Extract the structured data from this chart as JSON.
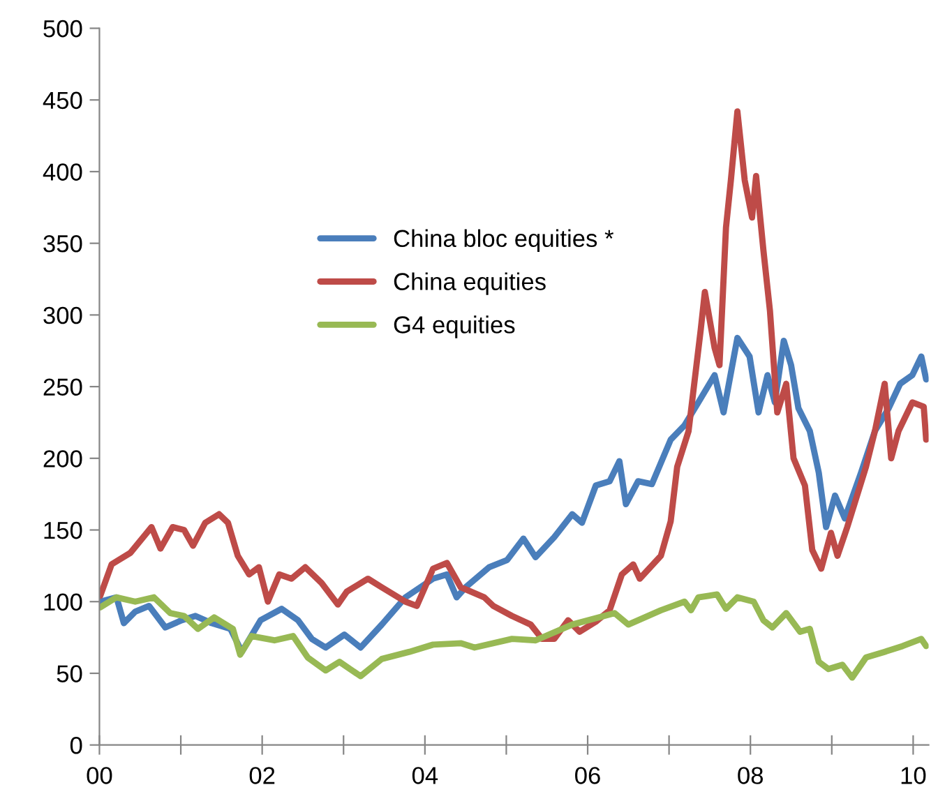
{
  "chart_data": {
    "type": "line",
    "xlim": [
      2000,
      2010.19
    ],
    "ylim": [
      0,
      500
    ],
    "yticks": [
      0,
      50,
      100,
      150,
      200,
      250,
      300,
      350,
      400,
      450,
      500
    ],
    "xticks": [
      {
        "value": 2000,
        "label": "00"
      },
      {
        "value": 2001,
        "label": null
      },
      {
        "value": 2002,
        "label": "02"
      },
      {
        "value": 2003,
        "label": null
      },
      {
        "value": 2004,
        "label": "04"
      },
      {
        "value": 2005,
        "label": null
      },
      {
        "value": 2006,
        "label": "06"
      },
      {
        "value": 2007,
        "label": null
      },
      {
        "value": 2008,
        "label": "08"
      },
      {
        "value": 2009,
        "label": null
      },
      {
        "value": 2010,
        "label": "10"
      }
    ],
    "grid": false,
    "legend": "top left",
    "marker": "none",
    "line_style": "solid",
    "series": [
      {
        "name": "China bloc equities *",
        "color": "#4a7ebb",
        "x": [
          2000.01,
          2000.21,
          2000.3,
          2000.44,
          2000.61,
          2000.81,
          2001.01,
          2001.18,
          2001.38,
          2001.61,
          2001.75,
          2001.98,
          2002.24,
          2002.44,
          2002.61,
          2002.78,
          2003.01,
          2003.21,
          2003.47,
          2003.76,
          2004.1,
          2004.27,
          2004.39,
          2004.5,
          2004.79,
          2005.01,
          2005.21,
          2005.36,
          2005.59,
          2005.81,
          2005.93,
          2006.1,
          2006.27,
          2006.39,
          2006.47,
          2006.62,
          2006.79,
          2007.02,
          2007.19,
          2007.36,
          2007.56,
          2007.67,
          2007.84,
          2007.99,
          2008.1,
          2008.21,
          2008.3,
          2008.41,
          2008.5,
          2008.59,
          2008.73,
          2008.84,
          2008.93,
          2009.04,
          2009.16,
          2009.36,
          2009.53,
          2009.7,
          2009.84,
          2009.99,
          2010.1,
          2010.16
        ],
        "values": [
          100,
          103,
          85,
          93,
          97,
          82,
          87,
          90,
          85,
          81,
          65,
          87,
          95,
          87,
          74,
          68,
          77,
          68,
          84,
          103,
          116,
          119,
          103,
          110,
          124,
          129,
          144,
          131,
          145,
          161,
          155,
          181,
          184,
          198,
          168,
          184,
          182,
          213,
          223,
          239,
          258,
          232,
          284,
          271,
          232,
          258,
          239,
          282,
          265,
          235,
          219,
          190,
          152,
          174,
          158,
          190,
          219,
          235,
          252,
          258,
          271,
          255
        ]
      },
      {
        "name": "China equities",
        "color": "#be4b48",
        "x": [
          2000.01,
          2000.15,
          2000.38,
          2000.64,
          2000.75,
          2000.9,
          2001.04,
          2001.15,
          2001.3,
          2001.47,
          2001.58,
          2001.7,
          2001.84,
          2001.96,
          2002.07,
          2002.21,
          2002.36,
          2002.53,
          2002.73,
          2002.93,
          2003.04,
          2003.3,
          2003.47,
          2003.76,
          2003.9,
          2004.1,
          2004.27,
          2004.44,
          2004.73,
          2004.84,
          2005.07,
          2005.3,
          2005.44,
          2005.59,
          2005.76,
          2005.9,
          2006.1,
          2006.27,
          2006.42,
          2006.56,
          2006.64,
          2006.9,
          2007.02,
          2007.1,
          2007.24,
          2007.39,
          2007.44,
          2007.56,
          2007.62,
          2007.7,
          2007.76,
          2007.84,
          2007.93,
          2008.02,
          2008.07,
          2008.16,
          2008.24,
          2008.33,
          2008.44,
          2008.53,
          2008.67,
          2008.76,
          2008.87,
          2008.99,
          2009.07,
          2009.19,
          2009.42,
          2009.53,
          2009.65,
          2009.73,
          2009.82,
          2009.99,
          2010.13,
          2010.16
        ],
        "values": [
          104,
          126,
          134,
          152,
          137,
          152,
          150,
          139,
          155,
          161,
          155,
          132,
          119,
          124,
          100,
          119,
          116,
          124,
          113,
          98,
          107,
          116,
          110,
          100,
          97,
          123,
          127,
          110,
          103,
          97,
          90,
          84,
          74,
          74,
          87,
          79,
          86,
          94,
          119,
          126,
          116,
          132,
          156,
          194,
          219,
          290,
          316,
          277,
          265,
          361,
          394,
          442,
          394,
          368,
          397,
          345,
          303,
          232,
          252,
          200,
          181,
          136,
          123,
          148,
          132,
          152,
          194,
          219,
          252,
          200,
          219,
          239,
          236,
          213
        ]
      },
      {
        "name": "G4 equities",
        "color": "#98b954",
        "x": [
          2000.01,
          2000.21,
          2000.44,
          2000.67,
          2000.87,
          2001.04,
          2001.21,
          2001.41,
          2001.64,
          2001.73,
          2001.87,
          2002.15,
          2002.38,
          2002.56,
          2002.78,
          2002.95,
          2003.21,
          2003.47,
          2003.81,
          2004.1,
          2004.44,
          2004.61,
          2005.07,
          2005.36,
          2005.81,
          2006.33,
          2006.5,
          2006.9,
          2007.19,
          2007.27,
          2007.36,
          2007.59,
          2007.7,
          2007.84,
          2008.04,
          2008.16,
          2008.27,
          2008.44,
          2008.61,
          2008.73,
          2008.84,
          2008.96,
          2009.13,
          2009.25,
          2009.42,
          2009.65,
          2009.87,
          2010.1,
          2010.16
        ],
        "values": [
          96,
          103,
          100,
          103,
          92,
          90,
          81,
          89,
          81,
          63,
          76,
          73,
          76,
          61,
          52,
          58,
          48,
          60,
          65,
          70,
          71,
          68,
          74,
          73,
          84,
          92,
          84,
          94,
          100,
          94,
          103,
          105,
          95,
          103,
          100,
          87,
          82,
          92,
          79,
          81,
          58,
          53,
          56,
          47,
          61,
          65,
          69,
          74,
          69
        ]
      }
    ]
  }
}
